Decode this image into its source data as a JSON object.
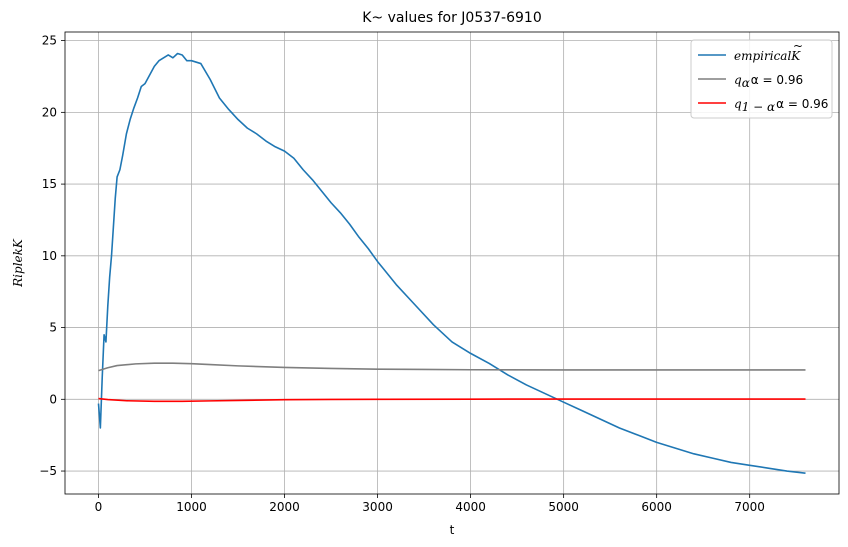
{
  "chart_data": {
    "type": "line",
    "title": "K~ values for J0537-6910",
    "xlabel": "t",
    "ylabel": "RiplekK",
    "xlim": [
      -360,
      7960
    ],
    "ylim": [
      -6.6,
      25.6
    ],
    "xticks": [
      0,
      1000,
      2000,
      3000,
      4000,
      5000,
      6000,
      7000
    ],
    "yticks": [
      -5,
      0,
      5,
      10,
      15,
      20,
      25
    ],
    "grid": true,
    "legend_position": "top-right",
    "series": [
      {
        "name": "empiricalK̃",
        "color": "#1f77b4",
        "x": [
          0,
          20,
          40,
          60,
          80,
          100,
          120,
          140,
          160,
          180,
          200,
          230,
          260,
          300,
          340,
          380,
          420,
          460,
          500,
          550,
          600,
          650,
          700,
          750,
          800,
          850,
          900,
          950,
          1000,
          1100,
          1200,
          1300,
          1400,
          1500,
          1600,
          1700,
          1800,
          1900,
          2000,
          2100,
          2200,
          2300,
          2400,
          2500,
          2600,
          2700,
          2800,
          2900,
          3000,
          3200,
          3400,
          3600,
          3800,
          4000,
          4200,
          4400,
          4600,
          4800,
          5000,
          5200,
          5400,
          5600,
          5800,
          6000,
          6200,
          6400,
          6600,
          6800,
          7000,
          7200,
          7400,
          7600
        ],
        "values": [
          -0.3,
          -2.0,
          1.5,
          4.5,
          4.0,
          6.5,
          8.5,
          10.0,
          12.0,
          14.0,
          15.5,
          16.0,
          17.0,
          18.5,
          19.5,
          20.3,
          21.0,
          21.8,
          22.0,
          22.6,
          23.2,
          23.6,
          23.8,
          24.0,
          23.8,
          24.1,
          24.0,
          23.6,
          23.6,
          23.4,
          22.3,
          21.0,
          20.2,
          19.5,
          18.9,
          18.5,
          18.0,
          17.6,
          17.3,
          16.8,
          16.0,
          15.3,
          14.5,
          13.7,
          13.0,
          12.2,
          11.3,
          10.5,
          9.6,
          8.0,
          6.6,
          5.2,
          4.0,
          3.2,
          2.5,
          1.7,
          1.0,
          0.4,
          -0.2,
          -0.8,
          -1.4,
          -2.0,
          -2.5,
          -3.0,
          -3.4,
          -3.8,
          -4.1,
          -4.4,
          -4.6,
          -4.8,
          -5.0,
          -5.15
        ]
      },
      {
        "name": "q_α α = 0.96",
        "color": "#7f7f7f",
        "x": [
          0,
          100,
          200,
          400,
          600,
          800,
          1000,
          1200,
          1500,
          2000,
          2500,
          3000,
          3500,
          4000,
          5000,
          6000,
          7000,
          7600
        ],
        "values": [
          2.0,
          2.2,
          2.35,
          2.47,
          2.52,
          2.52,
          2.48,
          2.42,
          2.33,
          2.22,
          2.15,
          2.1,
          2.08,
          2.06,
          2.05,
          2.05,
          2.05,
          2.05
        ]
      },
      {
        "name": "q_{1-α} α = 0.96",
        "color": "#ff0000",
        "x": [
          0,
          100,
          300,
          600,
          900,
          1200,
          1600,
          2000,
          2500,
          3000,
          4000,
          5000,
          6000,
          7000,
          7600
        ],
        "values": [
          0.05,
          -0.02,
          -0.1,
          -0.14,
          -0.14,
          -0.11,
          -0.07,
          -0.03,
          -0.01,
          0.0,
          0.01,
          0.02,
          0.02,
          0.02,
          0.02
        ]
      }
    ]
  },
  "legend": {
    "entry1_main": "empirical",
    "entry1_k": "K",
    "entry1_tilde": "~",
    "entry2_q": "q",
    "entry2_sub": "α",
    "entry2_rest": "α = 0.96",
    "entry3_q": "q",
    "entry3_sub": "1 − α",
    "entry3_rest": "α = 0.96"
  }
}
